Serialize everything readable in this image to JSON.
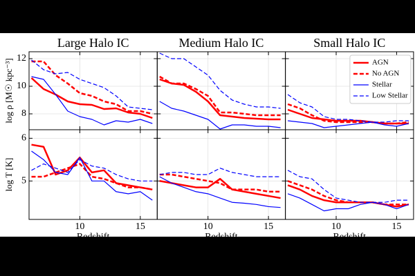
{
  "chart_data": [
    {
      "type": "line",
      "title": "Large Halo IC",
      "ylabel": "log ρ [M☉ kpc⁻³]",
      "x": [
        6,
        7,
        8,
        9,
        10,
        11,
        12,
        13,
        14,
        15,
        16
      ],
      "xlim": [
        5.8,
        16.4
      ],
      "ylim": [
        6.85,
        12.5
      ],
      "xticks": [
        10,
        15
      ],
      "yticks": [
        8,
        10,
        12
      ],
      "grid": true,
      "show_xtick_labels": false,
      "show_ytick_labels": true,
      "series": [
        {
          "color": "#ff0000",
          "dash": false,
          "width": 2.5,
          "values": [
            10.6,
            9.8,
            9.4,
            8.9,
            8.7,
            8.65,
            8.35,
            8.4,
            8.1,
            8.0,
            7.7
          ]
        },
        {
          "color": "#ff0000",
          "dash": true,
          "width": 2.5,
          "values": [
            11.8,
            11.8,
            10.8,
            10.2,
            9.5,
            9.3,
            8.9,
            8.7,
            8.2,
            8.2,
            8.0
          ]
        },
        {
          "color": "#0000ff",
          "dash": false,
          "width": 1.2,
          "values": [
            10.7,
            10.5,
            9.4,
            8.2,
            7.8,
            7.6,
            7.2,
            7.5,
            7.4,
            7.6,
            7.3
          ]
        },
        {
          "color": "#0000ff",
          "dash": true,
          "width": 1.2,
          "values": [
            11.9,
            11.2,
            10.9,
            11.0,
            10.5,
            10.2,
            9.9,
            9.3,
            8.5,
            8.4,
            8.3
          ]
        }
      ]
    },
    {
      "type": "line",
      "title": "Medium Halo IC",
      "x": [
        6,
        7,
        8,
        9,
        10,
        11,
        12,
        13,
        14,
        15,
        16
      ],
      "xlim": [
        5.8,
        16.4
      ],
      "ylim": [
        6.85,
        12.5
      ],
      "xticks": [
        10,
        15
      ],
      "yticks": [
        8,
        10,
        12
      ],
      "grid": true,
      "show_xtick_labels": false,
      "show_ytick_labels": false,
      "series": [
        {
          "color": "#ff0000",
          "dash": false,
          "width": 2.5,
          "values": [
            10.5,
            10.2,
            10.1,
            9.6,
            8.9,
            7.9,
            7.8,
            7.7,
            7.65,
            7.6,
            7.6
          ]
        },
        {
          "color": "#ff0000",
          "dash": true,
          "width": 2.5,
          "values": [
            10.7,
            10.2,
            10.2,
            9.8,
            9.3,
            8.1,
            8.1,
            8.0,
            7.9,
            7.9,
            7.9
          ]
        },
        {
          "color": "#0000ff",
          "dash": false,
          "width": 1.2,
          "values": [
            8.9,
            8.4,
            8.2,
            7.9,
            7.6,
            6.9,
            7.2,
            7.2,
            7.1,
            7.1,
            7.0
          ]
        },
        {
          "color": "#0000ff",
          "dash": true,
          "width": 1.2,
          "values": [
            12.4,
            12.0,
            12.0,
            11.4,
            10.8,
            9.7,
            9.0,
            8.7,
            8.5,
            8.5,
            8.4
          ]
        }
      ]
    },
    {
      "type": "line",
      "title": "Small Halo IC",
      "x": [
        6,
        7,
        8,
        9,
        10,
        11,
        12,
        13,
        14,
        15,
        16
      ],
      "xlim": [
        5.8,
        16.4
      ],
      "ylim": [
        6.85,
        12.5
      ],
      "xticks": [
        10,
        15
      ],
      "yticks": [
        8,
        10,
        12
      ],
      "grid": true,
      "show_xtick_labels": false,
      "show_ytick_labels": false,
      "legend": "upper right",
      "series": [
        {
          "name": "AGN",
          "color": "#ff0000",
          "dash": false,
          "width": 2.5,
          "values": [
            8.3,
            8.0,
            7.7,
            7.6,
            7.5,
            7.5,
            7.5,
            7.4,
            7.3,
            7.3,
            7.3
          ]
        },
        {
          "name": "No AGN",
          "color": "#ff0000",
          "dash": true,
          "width": 2.5,
          "values": [
            8.7,
            8.4,
            7.9,
            7.5,
            7.4,
            7.4,
            7.4,
            7.4,
            7.3,
            7.3,
            7.4
          ]
        },
        {
          "name": "Stellar",
          "color": "#0000ff",
          "dash": false,
          "width": 1.2,
          "values": [
            7.5,
            7.4,
            7.3,
            7.0,
            7.1,
            7.2,
            7.3,
            7.4,
            7.2,
            7.1,
            7.3
          ]
        },
        {
          "name": "Low Stellar",
          "color": "#0000ff",
          "dash": true,
          "width": 1.2,
          "values": [
            9.4,
            8.8,
            8.5,
            7.8,
            7.6,
            7.6,
            7.5,
            7.4,
            7.4,
            7.5,
            7.5
          ]
        }
      ]
    },
    {
      "type": "line",
      "ylabel": "log T [K]",
      "xlabel": "Redshift",
      "x": [
        6,
        7,
        8,
        9,
        10,
        11,
        12,
        13,
        14,
        15,
        16
      ],
      "xlim": [
        5.8,
        16.4
      ],
      "ylim": [
        4.1,
        6.2
      ],
      "xticks": [
        10,
        15
      ],
      "yticks": [
        5,
        6
      ],
      "grid": true,
      "show_xtick_labels": true,
      "show_ytick_labels": true,
      "series": [
        {
          "color": "#ff0000",
          "dash": false,
          "width": 2.5,
          "values": [
            5.85,
            5.8,
            5.15,
            5.25,
            5.55,
            5.2,
            5.25,
            4.95,
            4.9,
            4.85,
            4.8
          ]
        },
        {
          "color": "#ff0000",
          "dash": true,
          "width": 2.5,
          "values": [
            5.1,
            5.1,
            5.2,
            5.3,
            5.4,
            5.1,
            5.05,
            4.95,
            4.85,
            4.85,
            4.8
          ]
        },
        {
          "color": "#0000ff",
          "dash": false,
          "width": 1.2,
          "values": [
            5.7,
            5.5,
            5.2,
            5.15,
            5.55,
            5.0,
            5.0,
            4.75,
            4.7,
            4.75,
            4.55
          ]
        },
        {
          "color": "#0000ff",
          "dash": true,
          "width": 1.2,
          "values": [
            5.25,
            5.4,
            5.3,
            5.2,
            5.5,
            5.35,
            5.3,
            5.15,
            5.05,
            5.0,
            5.0
          ]
        }
      ]
    },
    {
      "type": "line",
      "xlabel": "Redshift",
      "x": [
        6,
        7,
        8,
        9,
        10,
        11,
        12,
        13,
        14,
        15,
        16
      ],
      "xlim": [
        5.8,
        16.4
      ],
      "ylim": [
        4.1,
        6.2
      ],
      "xticks": [
        10,
        15
      ],
      "yticks": [
        5,
        6
      ],
      "grid": true,
      "show_xtick_labels": true,
      "show_ytick_labels": false,
      "series": [
        {
          "color": "#ff0000",
          "dash": false,
          "width": 2.5,
          "values": [
            5.0,
            4.95,
            4.9,
            4.85,
            4.85,
            5.05,
            4.8,
            4.75,
            4.7,
            4.65,
            4.6
          ]
        },
        {
          "color": "#ff0000",
          "dash": true,
          "width": 2.5,
          "values": [
            5.15,
            5.15,
            5.1,
            5.05,
            5.0,
            4.95,
            4.8,
            4.8,
            4.8,
            4.75,
            4.75
          ]
        },
        {
          "color": "#0000ff",
          "dash": false,
          "width": 1.2,
          "values": [
            5.1,
            4.95,
            4.85,
            4.75,
            4.7,
            4.6,
            4.5,
            4.48,
            4.45,
            4.4,
            4.38
          ]
        },
        {
          "color": "#0000ff",
          "dash": true,
          "width": 1.2,
          "values": [
            5.15,
            5.2,
            5.2,
            5.15,
            5.15,
            5.3,
            5.2,
            5.15,
            5.1,
            5.1,
            5.1
          ]
        }
      ]
    },
    {
      "type": "line",
      "xlabel": "Redshift",
      "x": [
        6,
        7,
        8,
        9,
        10,
        11,
        12,
        13,
        14,
        15,
        16
      ],
      "xlim": [
        5.8,
        16.4
      ],
      "ylim": [
        4.1,
        6.2
      ],
      "xticks": [
        10,
        15
      ],
      "yticks": [
        5,
        6
      ],
      "grid": true,
      "show_xtick_labels": true,
      "show_ytick_labels": false,
      "series": [
        {
          "color": "#ff0000",
          "dash": false,
          "width": 2.5,
          "values": [
            4.9,
            4.8,
            4.65,
            4.55,
            4.5,
            4.5,
            4.5,
            4.5,
            4.45,
            4.4,
            4.45
          ]
        },
        {
          "color": "#ff0000",
          "dash": true,
          "width": 2.5,
          "values": [
            5.0,
            4.9,
            4.8,
            4.65,
            4.55,
            4.5,
            4.5,
            4.5,
            4.45,
            4.45,
            4.45
          ]
        },
        {
          "color": "#0000ff",
          "dash": false,
          "width": 1.2,
          "values": [
            4.7,
            4.6,
            4.45,
            4.3,
            4.35,
            4.35,
            4.45,
            4.5,
            4.45,
            4.35,
            4.45
          ]
        },
        {
          "color": "#0000ff",
          "dash": true,
          "width": 1.2,
          "values": [
            5.25,
            5.1,
            5.05,
            4.8,
            4.6,
            4.55,
            4.5,
            4.5,
            4.5,
            4.55,
            4.55
          ]
        }
      ]
    }
  ]
}
